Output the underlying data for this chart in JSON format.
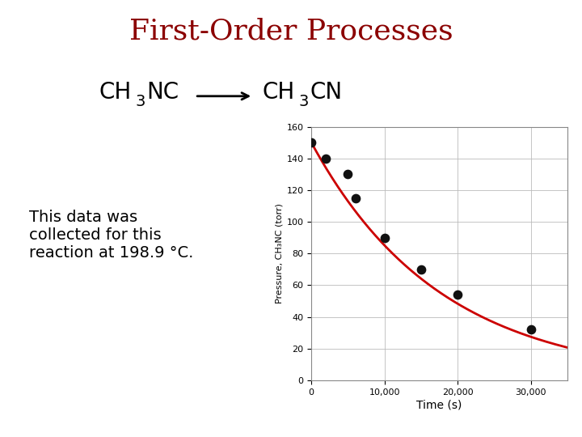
{
  "title": "First-Order Processes",
  "title_color": "#8B0000",
  "title_fontsize": 26,
  "text_note": "This data was\ncollected for this\nreaction at 198.9 °C.",
  "xlabel": "Time (s)",
  "ylabel": "Pressure, CH₃NC (torr)",
  "xlim": [
    0,
    35000
  ],
  "ylim": [
    0,
    160
  ],
  "xticks": [
    0,
    10000,
    20000,
    30000
  ],
  "yticks": [
    0,
    20,
    40,
    60,
    80,
    100,
    120,
    140,
    160
  ],
  "data_x": [
    0,
    2000,
    5000,
    6000,
    10000,
    15000,
    20000,
    30000
  ],
  "data_y": [
    150,
    140,
    130,
    115,
    90,
    70,
    54,
    32
  ],
  "k": 5.67e-05,
  "P0": 150,
  "curve_color": "#CC0000",
  "dot_color": "#111111",
  "dot_size": 55,
  "background_color": "#ffffff",
  "plot_bg_color": "#ffffff",
  "grid_color": "#bbbbbb",
  "axis_box_color": "#888888",
  "note_fontsize": 14,
  "reaction_fontsize": 20,
  "reaction_sub_fontsize": 14
}
